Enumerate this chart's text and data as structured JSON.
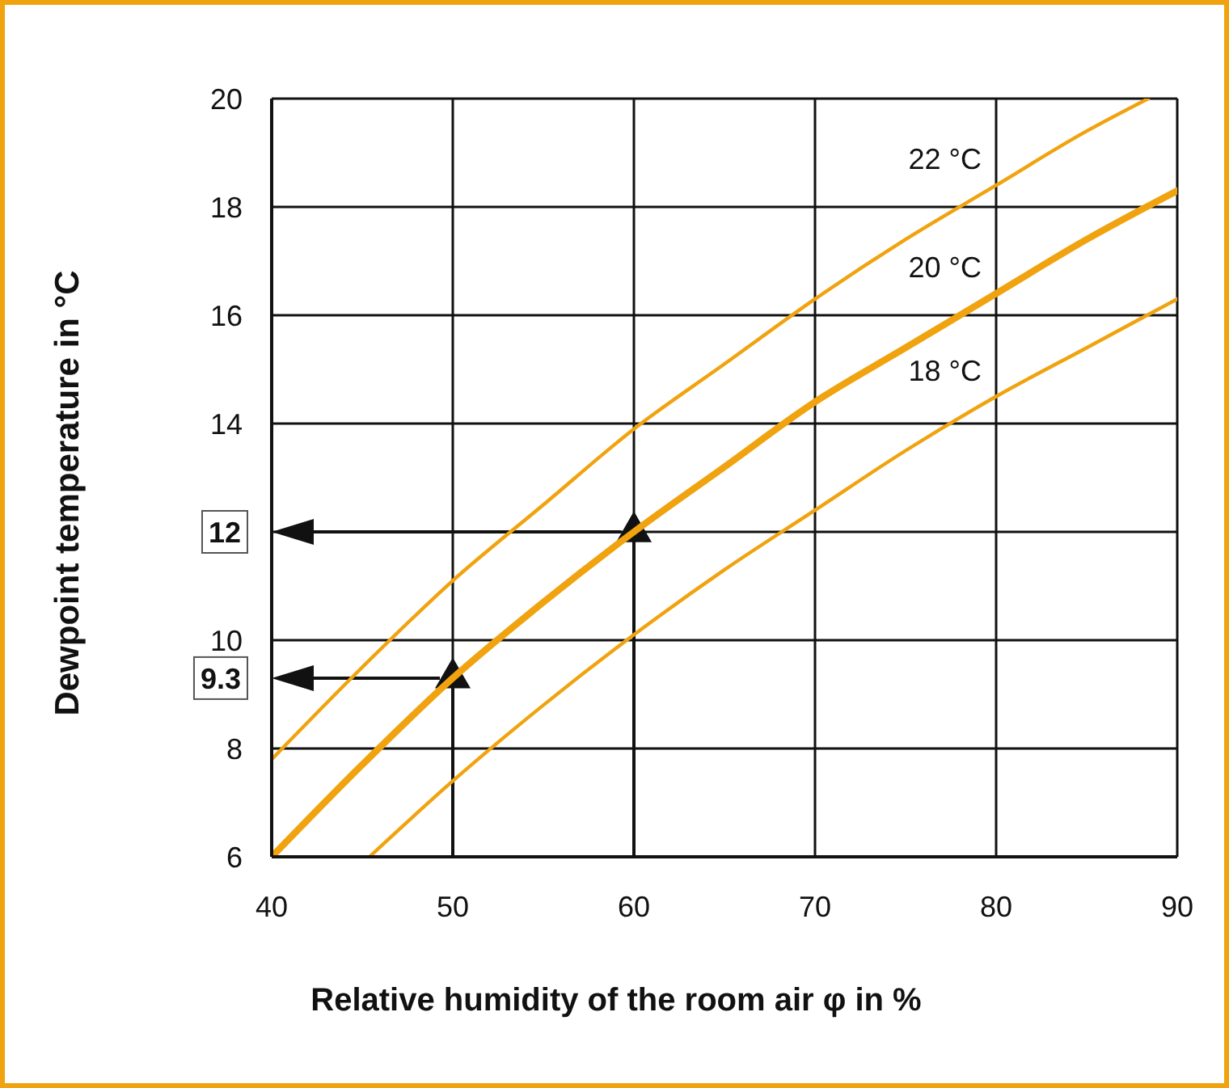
{
  "chart_data": {
    "type": "line",
    "xlabel": "Relative humidity of the room air φ in %",
    "ylabel": "Dewpoint temperature in °C",
    "xlim": [
      40,
      90
    ],
    "ylim": [
      6,
      20
    ],
    "xticks": [
      40,
      50,
      60,
      70,
      80,
      90
    ],
    "yticks": [
      6,
      8,
      10,
      {
        "value": 12,
        "label": null
      },
      14,
      16,
      18,
      20
    ],
    "grid": true,
    "legend": false,
    "marker": "none",
    "line_style": "solid",
    "series": [
      {
        "name": "22 °C",
        "color": "#f0a30f",
        "x": [
          40,
          45,
          50,
          55,
          60,
          65,
          70,
          75,
          80,
          85,
          88.4
        ],
        "values": [
          7.8,
          9.5,
          11.1,
          12.5,
          13.9,
          15.1,
          16.3,
          17.4,
          18.4,
          19.4,
          20
        ]
      },
      {
        "name": "20 °C",
        "color": "#f0a30f",
        "x": [
          40,
          45,
          50,
          55,
          60,
          65,
          70,
          75,
          80,
          85,
          90
        ],
        "values": [
          6.0,
          7.7,
          9.3,
          10.7,
          12.0,
          13.2,
          14.4,
          15.4,
          16.4,
          17.4,
          18.3
        ]
      },
      {
        "name": "18 °C",
        "color": "#f0a30f",
        "x": [
          45.4,
          50,
          55,
          60,
          65,
          70,
          75,
          80,
          85,
          90
        ],
        "values": [
          6.0,
          7.4,
          8.8,
          10.1,
          11.3,
          12.4,
          13.5,
          14.5,
          15.4,
          16.3
        ]
      },
      {
        "type": "scatter",
        "marker": "triangle",
        "color": "#111111",
        "x": [
          60,
          50
        ],
        "values": [
          12,
          9.3
        ]
      }
    ],
    "annotations": [
      "12",
      "9.3"
    ]
  }
}
